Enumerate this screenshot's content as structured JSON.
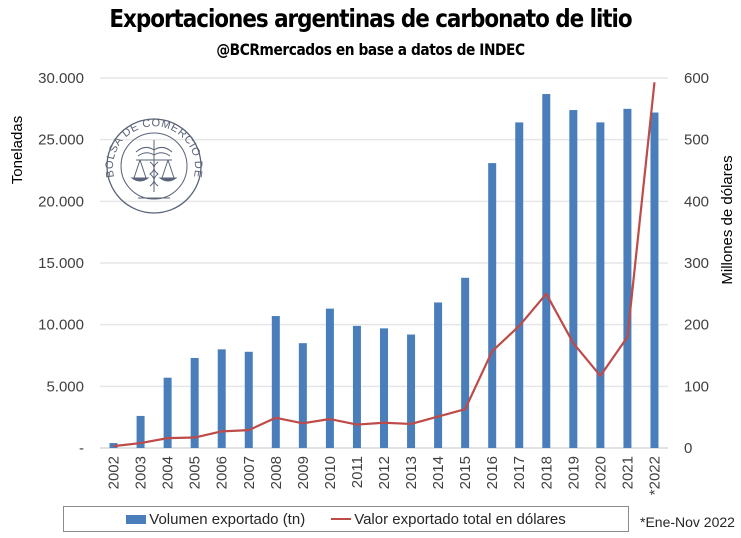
{
  "title": "Exportaciones argentinas de carbonato de litio",
  "subtitle": "@BCRmercados en base a datos de INDEC",
  "watermark": {
    "text": "BOLSA DE COMERCIO DE ROSARIO",
    "icon": "caduceus-scales-seal-icon"
  },
  "footnote": "*Ene-Nov 2022",
  "colors": {
    "bars": "#4a7ebb",
    "line": "#be4b48",
    "grid": "#e6e6e6"
  },
  "chart_data": {
    "type": "bar",
    "title": "Exportaciones argentinas de carbonato de litio",
    "subtitle": "@BCRmercados en base a datos de INDEC",
    "xlabel": "",
    "ylabel": "Toneladas",
    "y2label": "Millones de dólares",
    "ylim": [
      0,
      30000
    ],
    "y2lim": [
      0,
      600
    ],
    "y_ticks": [
      0,
      5000,
      10000,
      15000,
      20000,
      25000,
      30000
    ],
    "y_tick_labels": [
      "-",
      "5.000",
      "10.000",
      "15.000",
      "20.000",
      "25.000",
      "30.000"
    ],
    "y2_ticks": [
      0,
      100,
      200,
      300,
      400,
      500,
      600
    ],
    "y2_tick_labels": [
      "0",
      "100",
      "200",
      "300",
      "400",
      "500",
      "600"
    ],
    "grid": true,
    "legend_position": "bottom",
    "categories": [
      "2002",
      "2003",
      "2004",
      "2005",
      "2006",
      "2007",
      "2008",
      "2009",
      "2010",
      "2011",
      "2012",
      "2013",
      "2014",
      "2015",
      "2016",
      "2017",
      "2018",
      "2019",
      "2020",
      "2021",
      "*2022"
    ],
    "series": [
      {
        "name": "Volumen exportado (tn)",
        "type": "bar",
        "axis": "left",
        "values": [
          400,
          2600,
          5700,
          7300,
          8000,
          7800,
          10700,
          8500,
          11300,
          9900,
          9700,
          9200,
          11800,
          13800,
          23100,
          26400,
          28700,
          27400,
          26400,
          27500,
          27200
        ]
      },
      {
        "name": "Valor exportado total en dólares",
        "type": "line",
        "axis": "right",
        "values": [
          3,
          8,
          16,
          17,
          27,
          29,
          49,
          40,
          47,
          38,
          41,
          39,
          51,
          63,
          157,
          198,
          250,
          170,
          117,
          180,
          593
        ]
      }
    ],
    "annotations": [
      "*Ene-Nov 2022"
    ]
  }
}
